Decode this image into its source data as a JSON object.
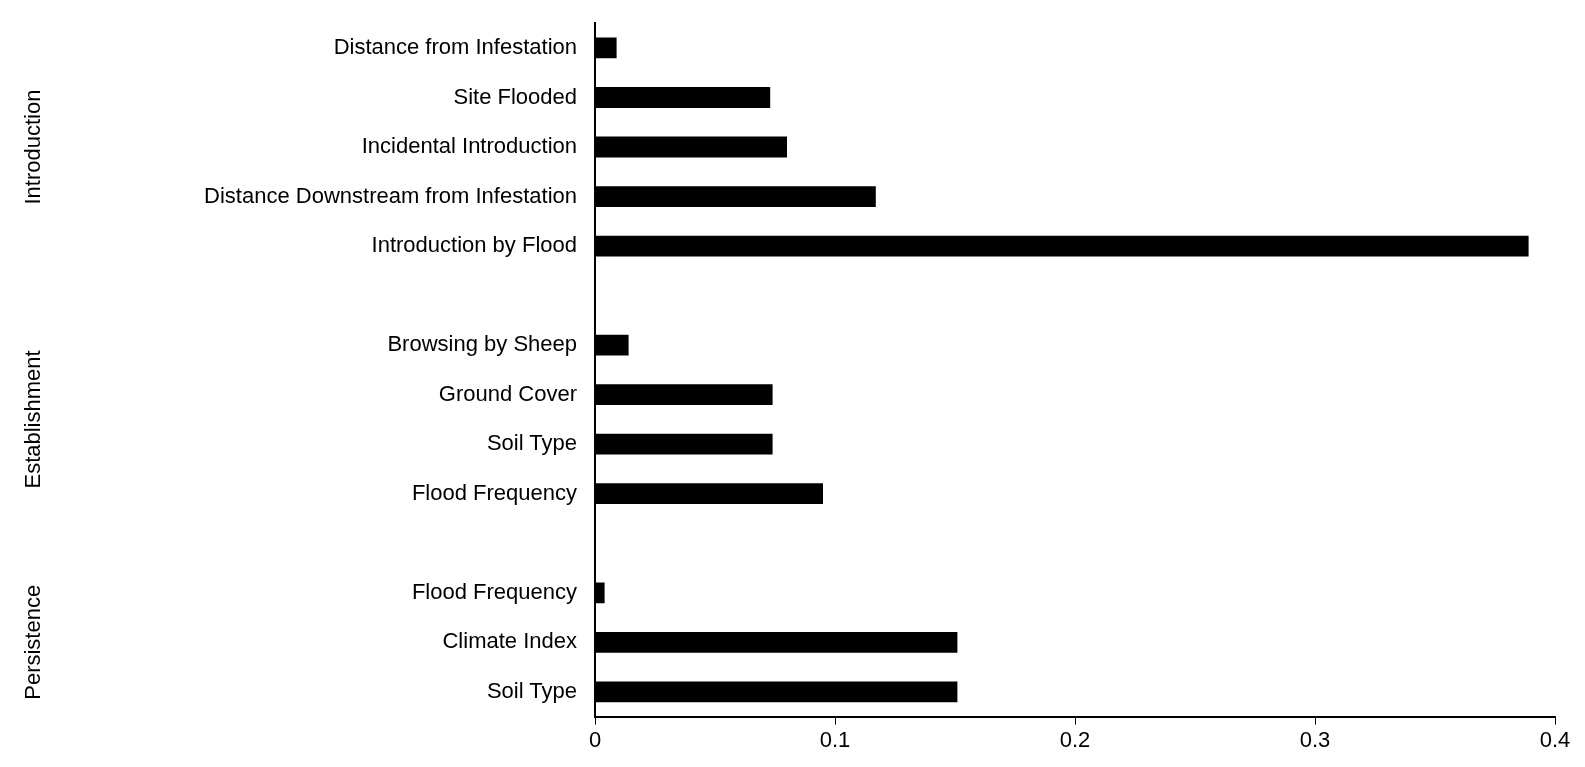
{
  "chart_data": {
    "type": "bar",
    "orientation": "horizontal",
    "categories": [
      "Distance from Infestation",
      "Site Flooded",
      "Incidental Introduction",
      "Distance Downstream from Infestation",
      "Introduction by Flood",
      null,
      "Browsing by Sheep",
      "Ground Cover",
      "Soil Type",
      "Flood Frequency",
      null,
      "Flood Frequency",
      "Climate Index",
      "Soil Type"
    ],
    "values": [
      0.009,
      0.073,
      0.08,
      0.117,
      0.389,
      null,
      0.014,
      0.074,
      0.074,
      0.095,
      null,
      0.004,
      0.151,
      0.151
    ],
    "color": "#000000",
    "xlim": [
      0,
      0.4
    ],
    "xticks": [
      0,
      0.1,
      0.2,
      0.3,
      0.4
    ],
    "grid": false,
    "legend": false,
    "annotations": [
      "Introduction",
      "Establishment",
      "Persistence"
    ]
  }
}
